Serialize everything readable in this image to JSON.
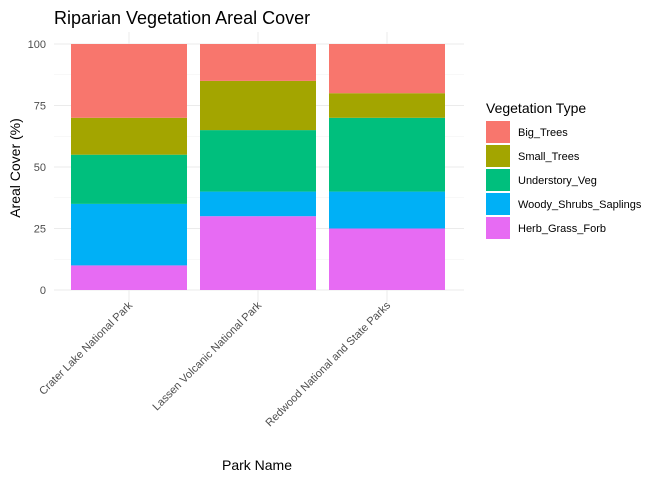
{
  "chart_data": {
    "type": "bar",
    "stacked": true,
    "title": "Riparian Vegetation Areal Cover",
    "xlabel": "Park Name",
    "ylabel": "Areal Cover (%)",
    "ylim": [
      0,
      100
    ],
    "yticks": [
      0,
      25,
      50,
      75,
      100
    ],
    "grid": true,
    "legend_title": "Vegetation Type",
    "legend_position": "right",
    "categories": [
      "Crater Lake National Park",
      "Lassen Volcanic National Park",
      "Redwood National and State Parks"
    ],
    "series": [
      {
        "name": "Herb_Grass_Forb",
        "color": "#E76BF3",
        "values": [
          10,
          30,
          25
        ]
      },
      {
        "name": "Woody_Shrubs_Saplings",
        "color": "#00B0F6",
        "values": [
          25,
          10,
          15
        ]
      },
      {
        "name": "Understory_Veg",
        "color": "#00BF7D",
        "values": [
          20,
          25,
          30
        ]
      },
      {
        "name": "Small_Trees",
        "color": "#A3A500",
        "values": [
          15,
          20,
          10
        ]
      },
      {
        "name": "Big_Trees",
        "color": "#F8766D",
        "values": [
          30,
          15,
          20
        ]
      }
    ],
    "legend_order": [
      "Big_Trees",
      "Small_Trees",
      "Understory_Veg",
      "Woody_Shrubs_Saplings",
      "Herb_Grass_Forb"
    ]
  }
}
